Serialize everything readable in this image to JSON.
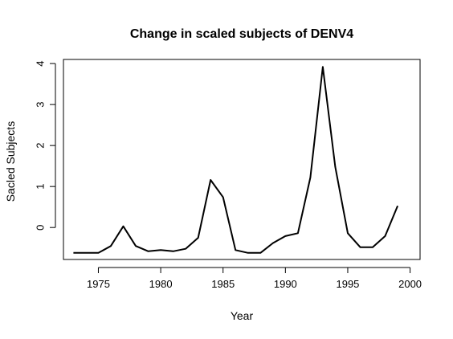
{
  "chart_data": {
    "type": "line",
    "title": "Change in scaled subjects of DENV4",
    "xlabel": "Year",
    "ylabel": "Sacled Subjects",
    "xlim": [
      1972.2,
      2000.8
    ],
    "ylim": [
      -0.78,
      4.1
    ],
    "xticks": [
      1975,
      1980,
      1985,
      1990,
      1995,
      2000
    ],
    "yticks": [
      0,
      1,
      2,
      3,
      4
    ],
    "grid": false,
    "series": [
      {
        "color": "#000000",
        "x": [
          1973,
          1974,
          1975,
          1976,
          1977,
          1978,
          1979,
          1980,
          1981,
          1982,
          1983,
          1984,
          1985,
          1986,
          1987,
          1988,
          1989,
          1990,
          1991,
          1992,
          1993,
          1994,
          1995,
          1996,
          1997,
          1998,
          1999
        ],
        "y": [
          -0.62,
          -0.62,
          -0.62,
          -0.45,
          0.03,
          -0.45,
          -0.58,
          -0.55,
          -0.58,
          -0.52,
          -0.25,
          1.16,
          0.74,
          -0.55,
          -0.62,
          -0.62,
          -0.38,
          -0.21,
          -0.14,
          1.22,
          3.92,
          1.48,
          -0.14,
          -0.48,
          -0.48,
          -0.21,
          0.53
        ]
      }
    ]
  }
}
